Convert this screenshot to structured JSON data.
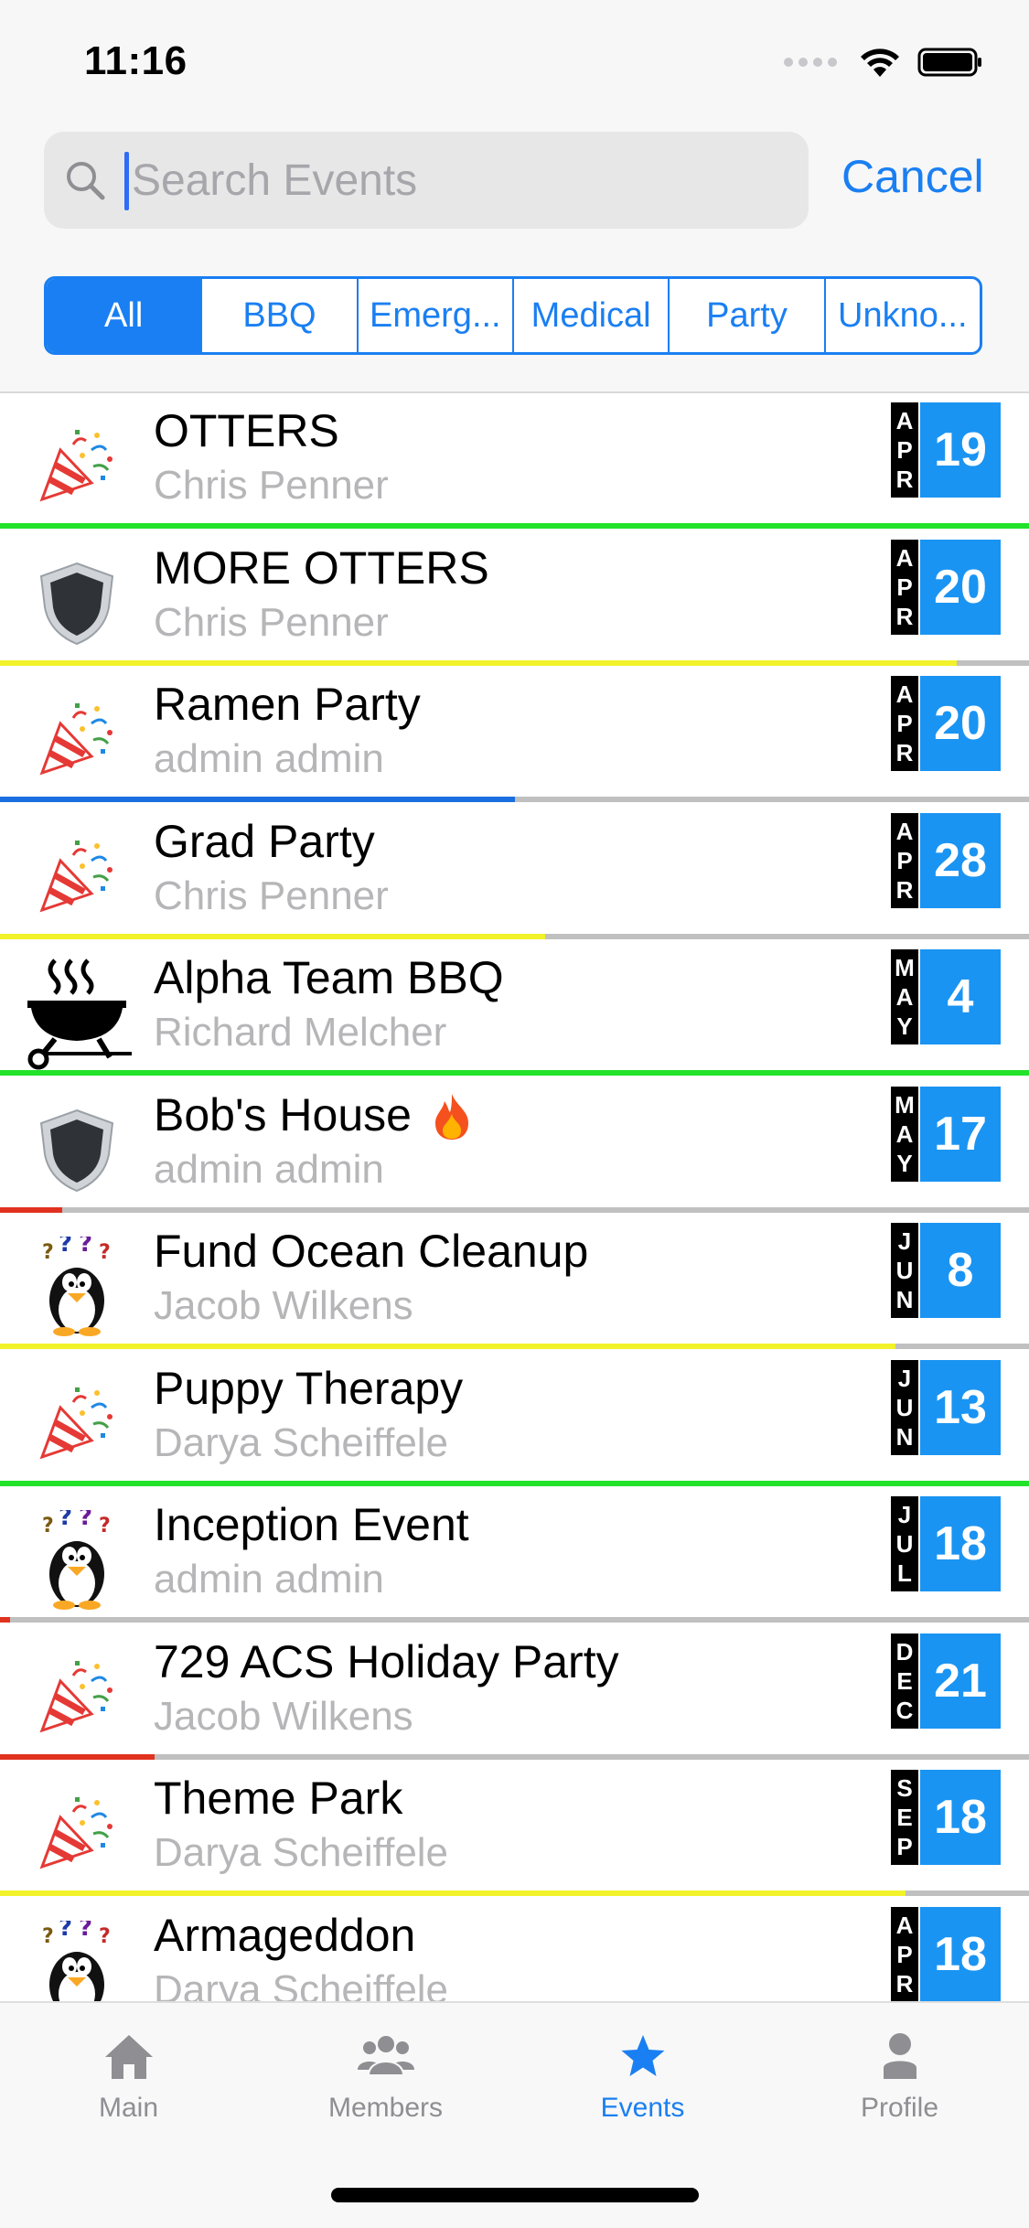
{
  "status_bar": {
    "time": "11:16",
    "icons": [
      "signal-dots-icon",
      "wifi-icon",
      "battery-icon"
    ]
  },
  "search": {
    "placeholder": "Search Events",
    "value": "",
    "cancel_label": "Cancel"
  },
  "filters": {
    "selected": "All",
    "segments": [
      "All",
      "BBQ",
      "Emerg...",
      "Medical",
      "Party",
      "Unkno..."
    ]
  },
  "colors": {
    "accent": "#1a7ff2",
    "date_day_bg": "#1a94f2",
    "green": "#22e22a",
    "yellow": "#f2f22a",
    "blue": "#1a6fe0",
    "red": "#e0321e"
  },
  "events": [
    {
      "title": "OTTERS",
      "host": "Chris Penner",
      "icon": "party-popper-icon",
      "month": "APR",
      "day": "19",
      "progress": 1.0,
      "progress_color": "green"
    },
    {
      "title": "MORE OTTERS",
      "host": "Chris Penner",
      "icon": "shield-icon",
      "month": "APR",
      "day": "20",
      "progress": 0.93,
      "progress_color": "yellow"
    },
    {
      "title": "Ramen Party",
      "host": "admin admin",
      "icon": "party-popper-icon",
      "month": "APR",
      "day": "20",
      "progress": 0.5,
      "progress_color": "blue"
    },
    {
      "title": "Grad Party",
      "host": "Chris Penner",
      "icon": "party-popper-icon",
      "month": "APR",
      "day": "28",
      "progress": 0.53,
      "progress_color": "yellow"
    },
    {
      "title": "Alpha Team BBQ",
      "host": "Richard Melcher",
      "icon": "grill-icon",
      "month": "MAY",
      "day": "4",
      "progress": 1.0,
      "progress_color": "green"
    },
    {
      "title": "Bob's House",
      "host": "admin admin",
      "icon": "shield-icon",
      "month": "MAY",
      "day": "17",
      "progress": 0.06,
      "progress_color": "red",
      "fire": true
    },
    {
      "title": "Fund Ocean Cleanup",
      "host": "Jacob Wilkens",
      "icon": "penguin-question-icon",
      "month": "JUN",
      "day": "8",
      "progress": 0.87,
      "progress_color": "yellow"
    },
    {
      "title": "Puppy Therapy",
      "host": "Darya Scheiffele",
      "icon": "party-popper-icon",
      "month": "JUN",
      "day": "13",
      "progress": 1.0,
      "progress_color": "green"
    },
    {
      "title": "Inception Event",
      "host": "admin admin",
      "icon": "penguin-question-icon",
      "month": "JUL",
      "day": "18",
      "progress": 0.01,
      "progress_color": "red"
    },
    {
      "title": "729 ACS Holiday Party",
      "host": "Jacob Wilkens",
      "icon": "party-popper-icon",
      "month": "DEC",
      "day": "21",
      "progress": 0.15,
      "progress_color": "red"
    },
    {
      "title": "Theme Park",
      "host": "Darya Scheiffele",
      "icon": "party-popper-icon",
      "month": "SEP",
      "day": "18",
      "progress": 0.88,
      "progress_color": "yellow"
    },
    {
      "title": "Armageddon",
      "host": "Darya Scheiffele",
      "icon": "penguin-question-icon",
      "month": "APR",
      "day": "18",
      "progress": 0.0,
      "progress_color": "red"
    }
  ],
  "tab_bar": {
    "selected": "Events",
    "tabs": [
      {
        "label": "Main",
        "icon": "home-icon"
      },
      {
        "label": "Members",
        "icon": "members-icon"
      },
      {
        "label": "Events",
        "icon": "star-icon"
      },
      {
        "label": "Profile",
        "icon": "profile-icon"
      }
    ]
  }
}
